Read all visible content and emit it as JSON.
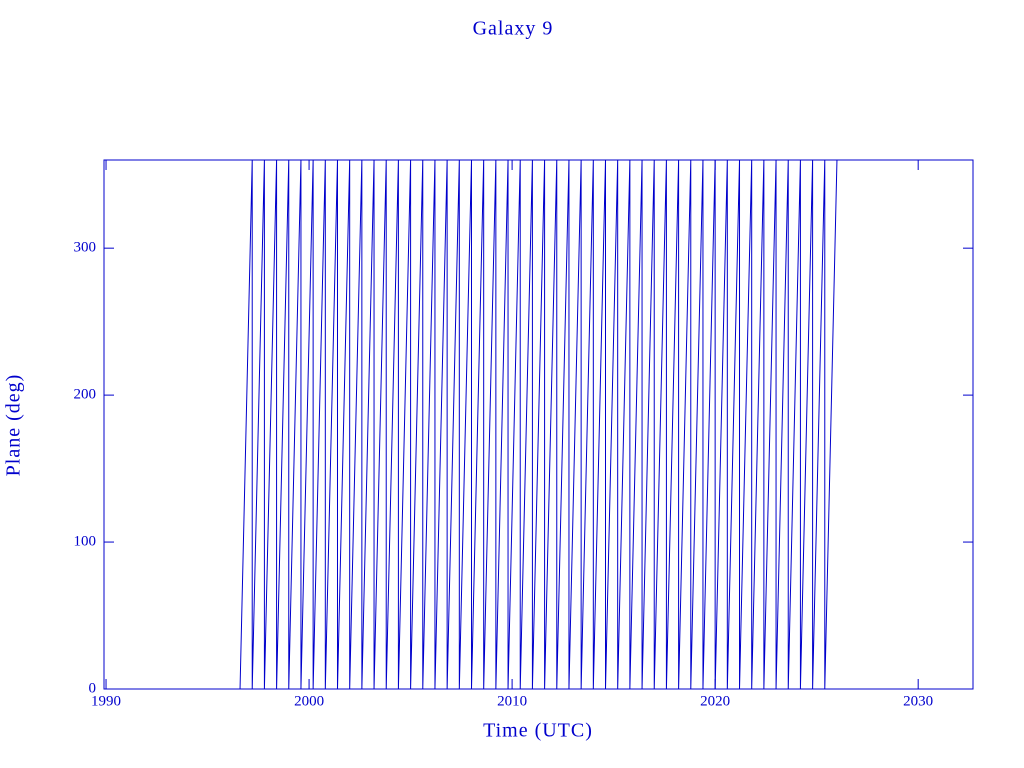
{
  "chart_data": {
    "type": "line",
    "title": "Galaxy 9",
    "x_label": "Time (UTC)",
    "y_label": "Plane (deg)",
    "x": [
      1996.6,
      1997.2,
      1997.2,
      1997.8,
      1997.8,
      1998.4,
      1998.4,
      1999.0,
      1999.0,
      1999.6,
      1999.6,
      2000.2,
      2000.2,
      2000.8,
      2000.8,
      2001.4,
      2001.4,
      2002.0,
      2002.0,
      2002.6,
      2002.6,
      2003.2,
      2003.2,
      2003.8,
      2003.8,
      2004.4,
      2004.4,
      2005.0,
      2005.0,
      2005.6,
      2005.6,
      2006.2,
      2006.2,
      2006.8,
      2006.8,
      2007.4,
      2007.4,
      2008.0,
      2008.0,
      2008.6,
      2008.6,
      2009.2,
      2009.2,
      2009.8,
      2009.8,
      2010.4,
      2010.4,
      2011.0,
      2011.0,
      2011.6,
      2011.6,
      2012.2,
      2012.2,
      2012.8,
      2012.8,
      2013.4,
      2013.4,
      2014.0,
      2014.0,
      2014.6,
      2014.6,
      2015.2,
      2015.2,
      2015.8,
      2015.8,
      2016.4,
      2016.4,
      2017.0,
      2017.0,
      2017.6,
      2017.6,
      2018.2,
      2018.2,
      2018.8,
      2018.8,
      2019.4,
      2019.4,
      2020.0,
      2020.0,
      2020.6,
      2020.6,
      2021.2,
      2021.2,
      2021.8,
      2021.8,
      2022.4,
      2022.4,
      2023.0,
      2023.0,
      2023.6,
      2023.6,
      2024.2,
      2024.2,
      2024.8,
      2024.8,
      2025.4,
      2025.4,
      2026.0
    ],
    "series": [
      {
        "color": "#0000cc",
        "values": [
          0,
          360,
          0,
          360,
          0,
          360,
          0,
          360,
          0,
          360,
          0,
          360,
          0,
          360,
          0,
          360,
          0,
          360,
          0,
          360,
          0,
          360,
          0,
          360,
          0,
          360,
          0,
          360,
          0,
          360,
          0,
          360,
          0,
          360,
          0,
          360,
          0,
          360,
          0,
          360,
          0,
          360,
          0,
          360,
          0,
          360,
          0,
          360,
          0,
          360,
          0,
          360,
          0,
          360,
          0,
          360,
          0,
          360,
          0,
          360,
          0,
          360,
          0,
          360,
          0,
          360,
          0,
          360,
          0,
          360,
          0,
          360,
          0,
          360,
          0,
          360,
          0,
          360,
          0,
          360,
          0,
          360,
          0,
          360,
          0,
          360,
          0,
          360,
          0,
          360,
          0,
          360,
          0,
          360,
          0,
          360,
          0,
          360
        ]
      }
    ],
    "xlim": [
      1989.9,
      2032.7
    ],
    "xticks": [
      1990,
      2000,
      2010,
      2020,
      2030
    ],
    "ylim": [
      0,
      360
    ],
    "yticks": [
      0,
      100,
      200,
      300
    ]
  }
}
